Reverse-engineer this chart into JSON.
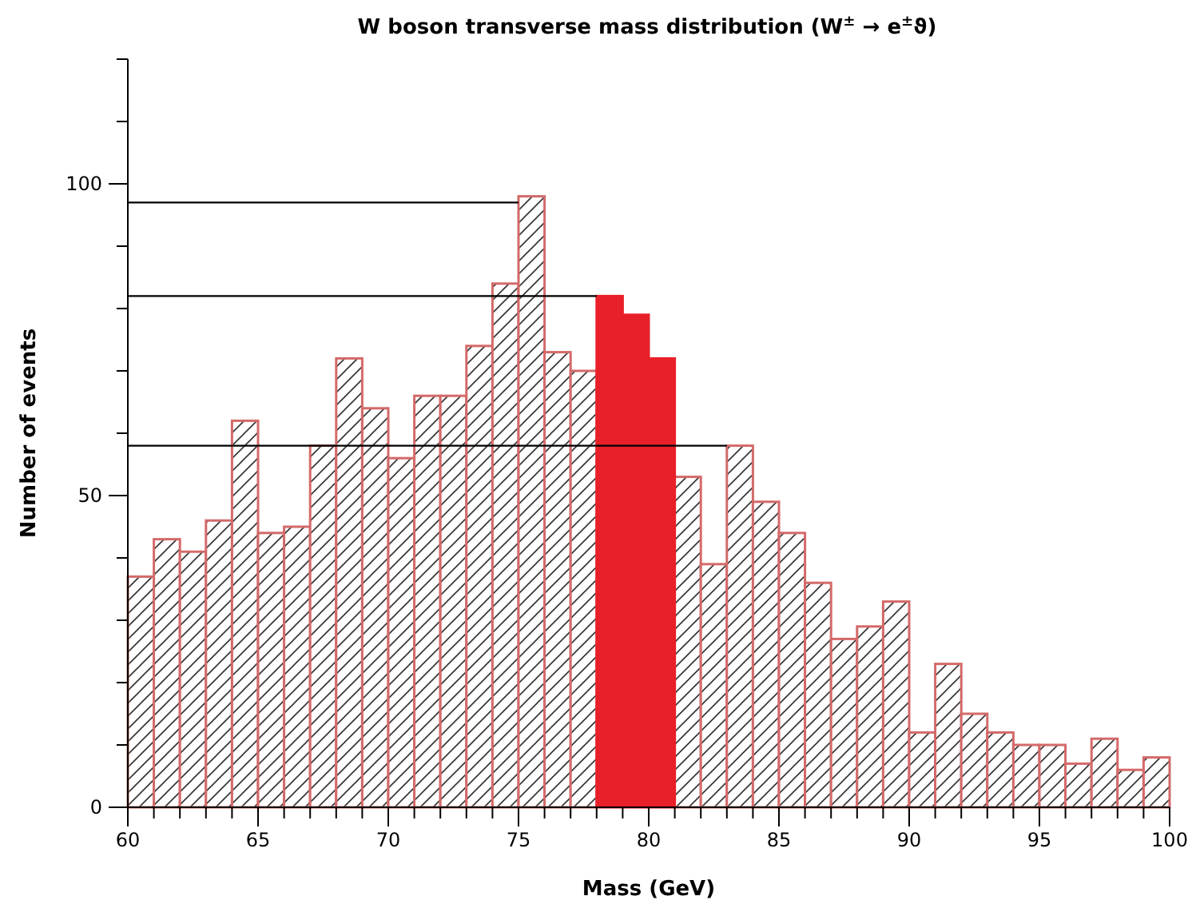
{
  "chart_data": {
    "type": "histogram",
    "title": "W boson transverse mass distribution (W$^{±}$ → e$^{±}$ϑ)",
    "xlabel": "Mass (GeV)",
    "ylabel": "Number of events",
    "bins": [
      60,
      61,
      62,
      63,
      64,
      65,
      66,
      67,
      68,
      69,
      70,
      71,
      72,
      73,
      74,
      75,
      76,
      77,
      78,
      79,
      80,
      81,
      82,
      83,
      84,
      85,
      86,
      87,
      88,
      89,
      90,
      91,
      92,
      93,
      94,
      95,
      96,
      97,
      98,
      99,
      100
    ],
    "series": [
      {
        "color": "#d46a6a",
        "values": [
          37,
          43,
          41,
          46,
          62,
          44,
          45,
          58,
          72,
          64,
          56,
          66,
          66,
          74,
          84,
          98,
          73,
          70,
          null,
          null,
          null,
          53,
          39,
          58,
          49,
          44,
          36,
          27,
          29,
          33,
          12,
          23,
          15,
          12,
          10,
          10,
          7,
          11,
          6,
          8
        ]
      },
      {
        "color": "#e8202a",
        "values": [
          null,
          null,
          null,
          null,
          null,
          null,
          null,
          null,
          null,
          null,
          null,
          null,
          null,
          null,
          null,
          null,
          null,
          null,
          82,
          79,
          72,
          null,
          null,
          null,
          null,
          null,
          null,
          null,
          null,
          null,
          null,
          null,
          null,
          null,
          null,
          null,
          null,
          null,
          null,
          null
        ]
      },
      {
        "type": "line",
        "color": "#000000",
        "x": [
          60,
          75
        ],
        "values": [
          97,
          97
        ]
      },
      {
        "type": "line",
        "color": "#000000",
        "x": [
          60,
          78
        ],
        "values": [
          82,
          82
        ]
      },
      {
        "type": "line",
        "color": "#000000",
        "x": [
          60,
          83
        ],
        "values": [
          58,
          58
        ]
      }
    ],
    "xlim": [
      60,
      100
    ],
    "ylim": [
      0,
      120
    ],
    "xticks": [
      60,
      {
        "value": 61,
        "label": null
      },
      {
        "value": 62,
        "label": null
      },
      {
        "value": 63,
        "label": null
      },
      {
        "value": 64,
        "label": null
      },
      65,
      {
        "value": 66,
        "label": null
      },
      {
        "value": 67,
        "label": null
      },
      {
        "value": 68,
        "label": null
      },
      {
        "value": 69,
        "label": null
      },
      70,
      {
        "value": 71,
        "label": null
      },
      {
        "value": 72,
        "label": null
      },
      {
        "value": 73,
        "label": null
      },
      {
        "value": 74,
        "label": null
      },
      75,
      {
        "value": 76,
        "label": null
      },
      {
        "value": 77,
        "label": null
      },
      {
        "value": 78,
        "label": null
      },
      {
        "value": 79,
        "label": null
      },
      80,
      {
        "value": 81,
        "label": null
      },
      {
        "value": 82,
        "label": null
      },
      {
        "value": 83,
        "label": null
      },
      {
        "value": 84,
        "label": null
      },
      85,
      {
        "value": 86,
        "label": null
      },
      {
        "value": 87,
        "label": null
      },
      {
        "value": 88,
        "label": null
      },
      {
        "value": 89,
        "label": null
      },
      90,
      {
        "value": 91,
        "label": null
      },
      {
        "value": 92,
        "label": null
      },
      {
        "value": 93,
        "label": null
      },
      {
        "value": 94,
        "label": null
      },
      95,
      {
        "value": 96,
        "label": null
      },
      {
        "value": 97,
        "label": null
      },
      {
        "value": 98,
        "label": null
      },
      {
        "value": 99,
        "label": null
      },
      100
    ],
    "yticks": [
      0,
      {
        "value": 10,
        "label": null
      },
      {
        "value": 20,
        "label": null
      },
      {
        "value": 30,
        "label": null
      },
      {
        "value": 40,
        "label": null
      },
      50,
      {
        "value": 60,
        "label": null
      },
      {
        "value": 70,
        "label": null
      },
      {
        "value": 80,
        "label": null
      },
      {
        "value": 90,
        "label": null
      },
      100,
      {
        "value": 110,
        "label": null
      },
      {
        "value": 120,
        "label": null
      }
    ],
    "grid": false,
    "marker": "none",
    "line_style": "solid"
  }
}
